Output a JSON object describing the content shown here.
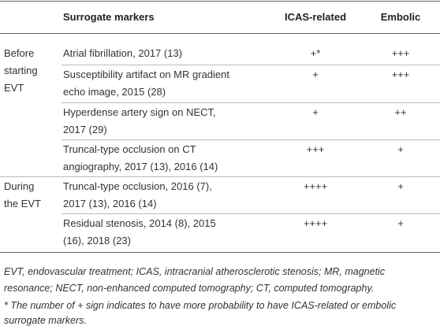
{
  "table": {
    "header": [
      "Surrogate markers",
      "ICAS-related",
      "Embolic"
    ],
    "groups": [
      {
        "label": [
          "Before",
          "starting",
          "EVT"
        ],
        "rows": [
          {
            "marker": [
              "Atrial fibrillation, 2017 (13)"
            ],
            "icas": "+*",
            "embolic": "+++"
          },
          {
            "marker": [
              "Susceptibility artifact on MR gradient",
              "echo image, 2015 (28)"
            ],
            "icas": "+",
            "embolic": "+++"
          },
          {
            "marker": [
              "Hyperdense artery sign on NECT,",
              "2017 (29)"
            ],
            "icas": "+",
            "embolic": "++"
          },
          {
            "marker": [
              "Truncal-type occlusion on CT",
              "angiography, 2017 (13), 2016 (14)"
            ],
            "icas": "+++",
            "embolic": "+"
          }
        ]
      },
      {
        "label": [
          "During",
          "the EVT"
        ],
        "rows": [
          {
            "marker": [
              "Truncal-type occlusion, 2016 (7),",
              "2017 (13), 2016 (14)"
            ],
            "icas": "++++",
            "embolic": "+"
          },
          {
            "marker": [
              "Residual stenosis, 2014 (8), 2015",
              "(16), 2018 (23)"
            ],
            "icas": "++++",
            "embolic": "+"
          }
        ]
      }
    ]
  },
  "footnote": [
    "EVT, endovascular treatment; ICAS, intracranial atherosclerotic stenosis; MR, magnetic",
    "resonance; NECT, non-enhanced computed tomography; CT, computed tomography.",
    "* The number of + sign indicates to have more probability to have ICAS-related or embolic",
    "surrogate markers."
  ]
}
